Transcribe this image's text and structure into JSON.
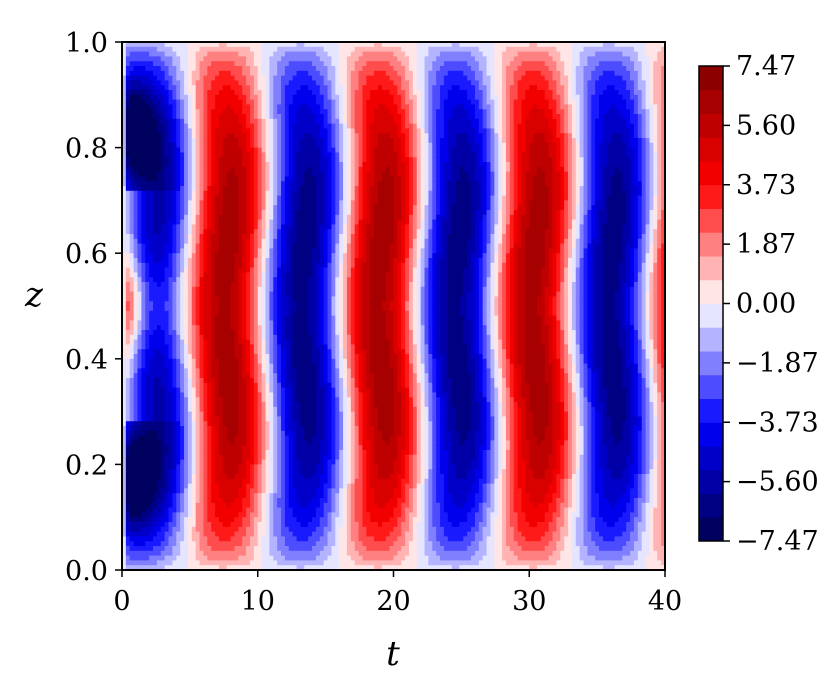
{
  "chart_data": {
    "type": "heatmap",
    "title": "",
    "xlabel": "t",
    "ylabel": "z",
    "xlim": [
      0,
      40
    ],
    "ylim": [
      0,
      1
    ],
    "x_ticks": [
      "0",
      "10",
      "20",
      "30",
      "40"
    ],
    "y_ticks": [
      "0.0",
      "0.2",
      "0.4",
      "0.6",
      "0.8",
      "1.0"
    ],
    "colormap": "seismic",
    "value_range": [
      -7.47,
      7.47
    ],
    "colorbar_ticks": [
      "7.47",
      "5.60",
      "3.73",
      "1.87",
      "0.00",
      "−1.87",
      "−3.73",
      "−5.60",
      "−7.47"
    ],
    "colors": {
      "min": "#00004c",
      "zero": "#ffffff",
      "max": "#7f0000",
      "mid_neg": "#0000ff",
      "mid_pos": "#ff0000"
    },
    "field_description": "Oscillating z-symmetric pattern alternating red/blue with period ~11.5 in t; extrema near z≈0.15 and z≈0.85; early transient for t<5.",
    "bands": [
      {
        "t_center": 1.0,
        "sign": 1,
        "note": "thin transient strip near edges"
      },
      {
        "t_center": 3.8,
        "sign": -1
      },
      {
        "t_center": 7.8,
        "sign": 1
      },
      {
        "t_center": 13.0,
        "sign": -1
      },
      {
        "t_center": 18.6,
        "sign": 1
      },
      {
        "t_center": 24.5,
        "sign": -1
      },
      {
        "t_center": 30.1,
        "sign": 1
      },
      {
        "t_center": 35.8,
        "sign": -1
      },
      {
        "t_center": 40.5,
        "sign": 1
      }
    ]
  }
}
